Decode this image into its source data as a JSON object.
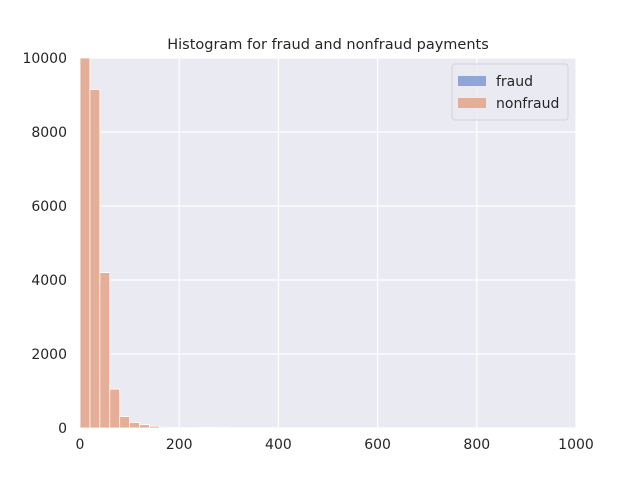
{
  "chart_data": {
    "type": "bar",
    "title": "Histogram for fraud and nonfraud payments",
    "xlabel": "",
    "ylabel": "",
    "xlim": [
      0,
      1000
    ],
    "ylim": [
      0,
      10000
    ],
    "x_ticks": [
      "0",
      "200",
      "400",
      "600",
      "800",
      "1000"
    ],
    "y_ticks": [
      "0",
      "2000",
      "4000",
      "6000",
      "8000",
      "10000"
    ],
    "grid": true,
    "legend_position": "top-right",
    "bin_width": 20,
    "series": [
      {
        "name": "fraud",
        "color": "#91a6d8",
        "bins": [
          {
            "x0": 240,
            "x1": 260,
            "value": 15
          },
          {
            "x0": 260,
            "x1": 280,
            "value": 15
          },
          {
            "x0": 280,
            "x1": 300,
            "value": 10
          }
        ]
      },
      {
        "name": "nonfraud",
        "color": "#e5ae98",
        "bins": [
          {
            "x0": 0,
            "x1": 20,
            "value": 10000
          },
          {
            "x0": 20,
            "x1": 40,
            "value": 9150
          },
          {
            "x0": 40,
            "x1": 60,
            "value": 4200
          },
          {
            "x0": 60,
            "x1": 80,
            "value": 1050
          },
          {
            "x0": 80,
            "x1": 100,
            "value": 310
          },
          {
            "x0": 100,
            "x1": 120,
            "value": 150
          },
          {
            "x0": 120,
            "x1": 140,
            "value": 90
          },
          {
            "x0": 140,
            "x1": 160,
            "value": 50
          },
          {
            "x0": 160,
            "x1": 180,
            "value": 25
          },
          {
            "x0": 180,
            "x1": 200,
            "value": 12
          }
        ]
      }
    ]
  }
}
